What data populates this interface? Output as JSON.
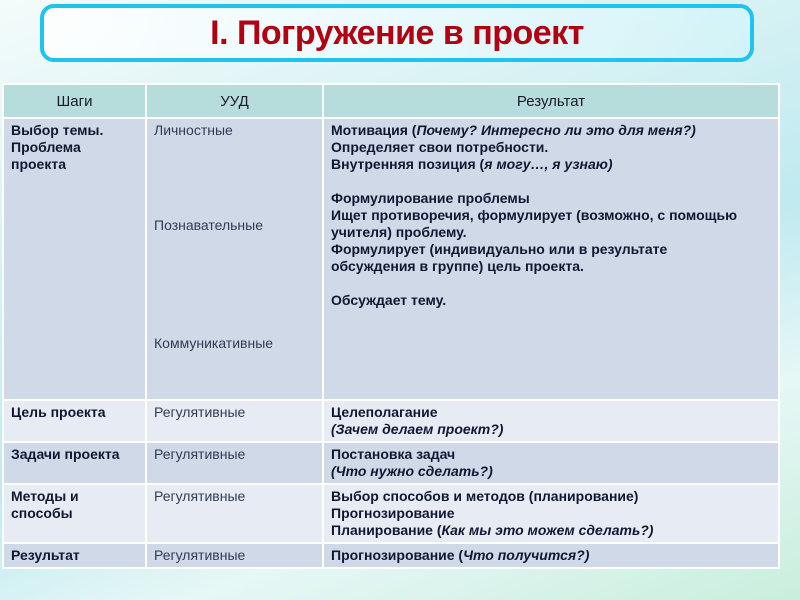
{
  "title": "I. Погружение в проект",
  "header": {
    "steps": "Шаги",
    "uud": "УУД",
    "result": "Результат"
  },
  "rows": [
    {
      "step": "Выбор темы. Проблема проекта",
      "uud": [
        "Личностные",
        "Познавательные",
        "Коммуникативные"
      ],
      "result": {
        "l1a": "Мотивация (",
        "l1b": "Почему? Интересно ли это для меня?)",
        "l2": "Определяет свои потребности.",
        "l3a": "Внутренняя позиция (",
        "l3b": "я могу…, я узнаю)",
        "p2": "Формулирование проблемы",
        "p3": "Ищет противоречия, формулирует (возможно, с помощью учителя) проблему.",
        "p4": "Формулирует (индивидуально или в результате обсуждения в группе) цель проекта.",
        "p5": "Обсуждает тему."
      }
    },
    {
      "step": "Цель проекта",
      "uud": "Регулятивные",
      "result": {
        "a": "Целеполагание",
        "b": "(Зачем делаем проект?)"
      }
    },
    {
      "step": "Задачи проекта",
      "uud": "Регулятивные",
      "result": {
        "a": "Постановка задач",
        "b": "(Что нужно сделать?)"
      }
    },
    {
      "step": "Методы и способы",
      "uud": "Регулятивные",
      "result": {
        "a": "Выбор способов и методов (планирование)",
        "b": "Прогнозирование",
        "c": "Планирование (",
        "d": "Как мы это можем сделать?)"
      }
    },
    {
      "step": "Результат",
      "uud": "Регулятивные",
      "result": {
        "a": "Прогнозирование (",
        "b": "Что получится?)"
      }
    }
  ]
}
